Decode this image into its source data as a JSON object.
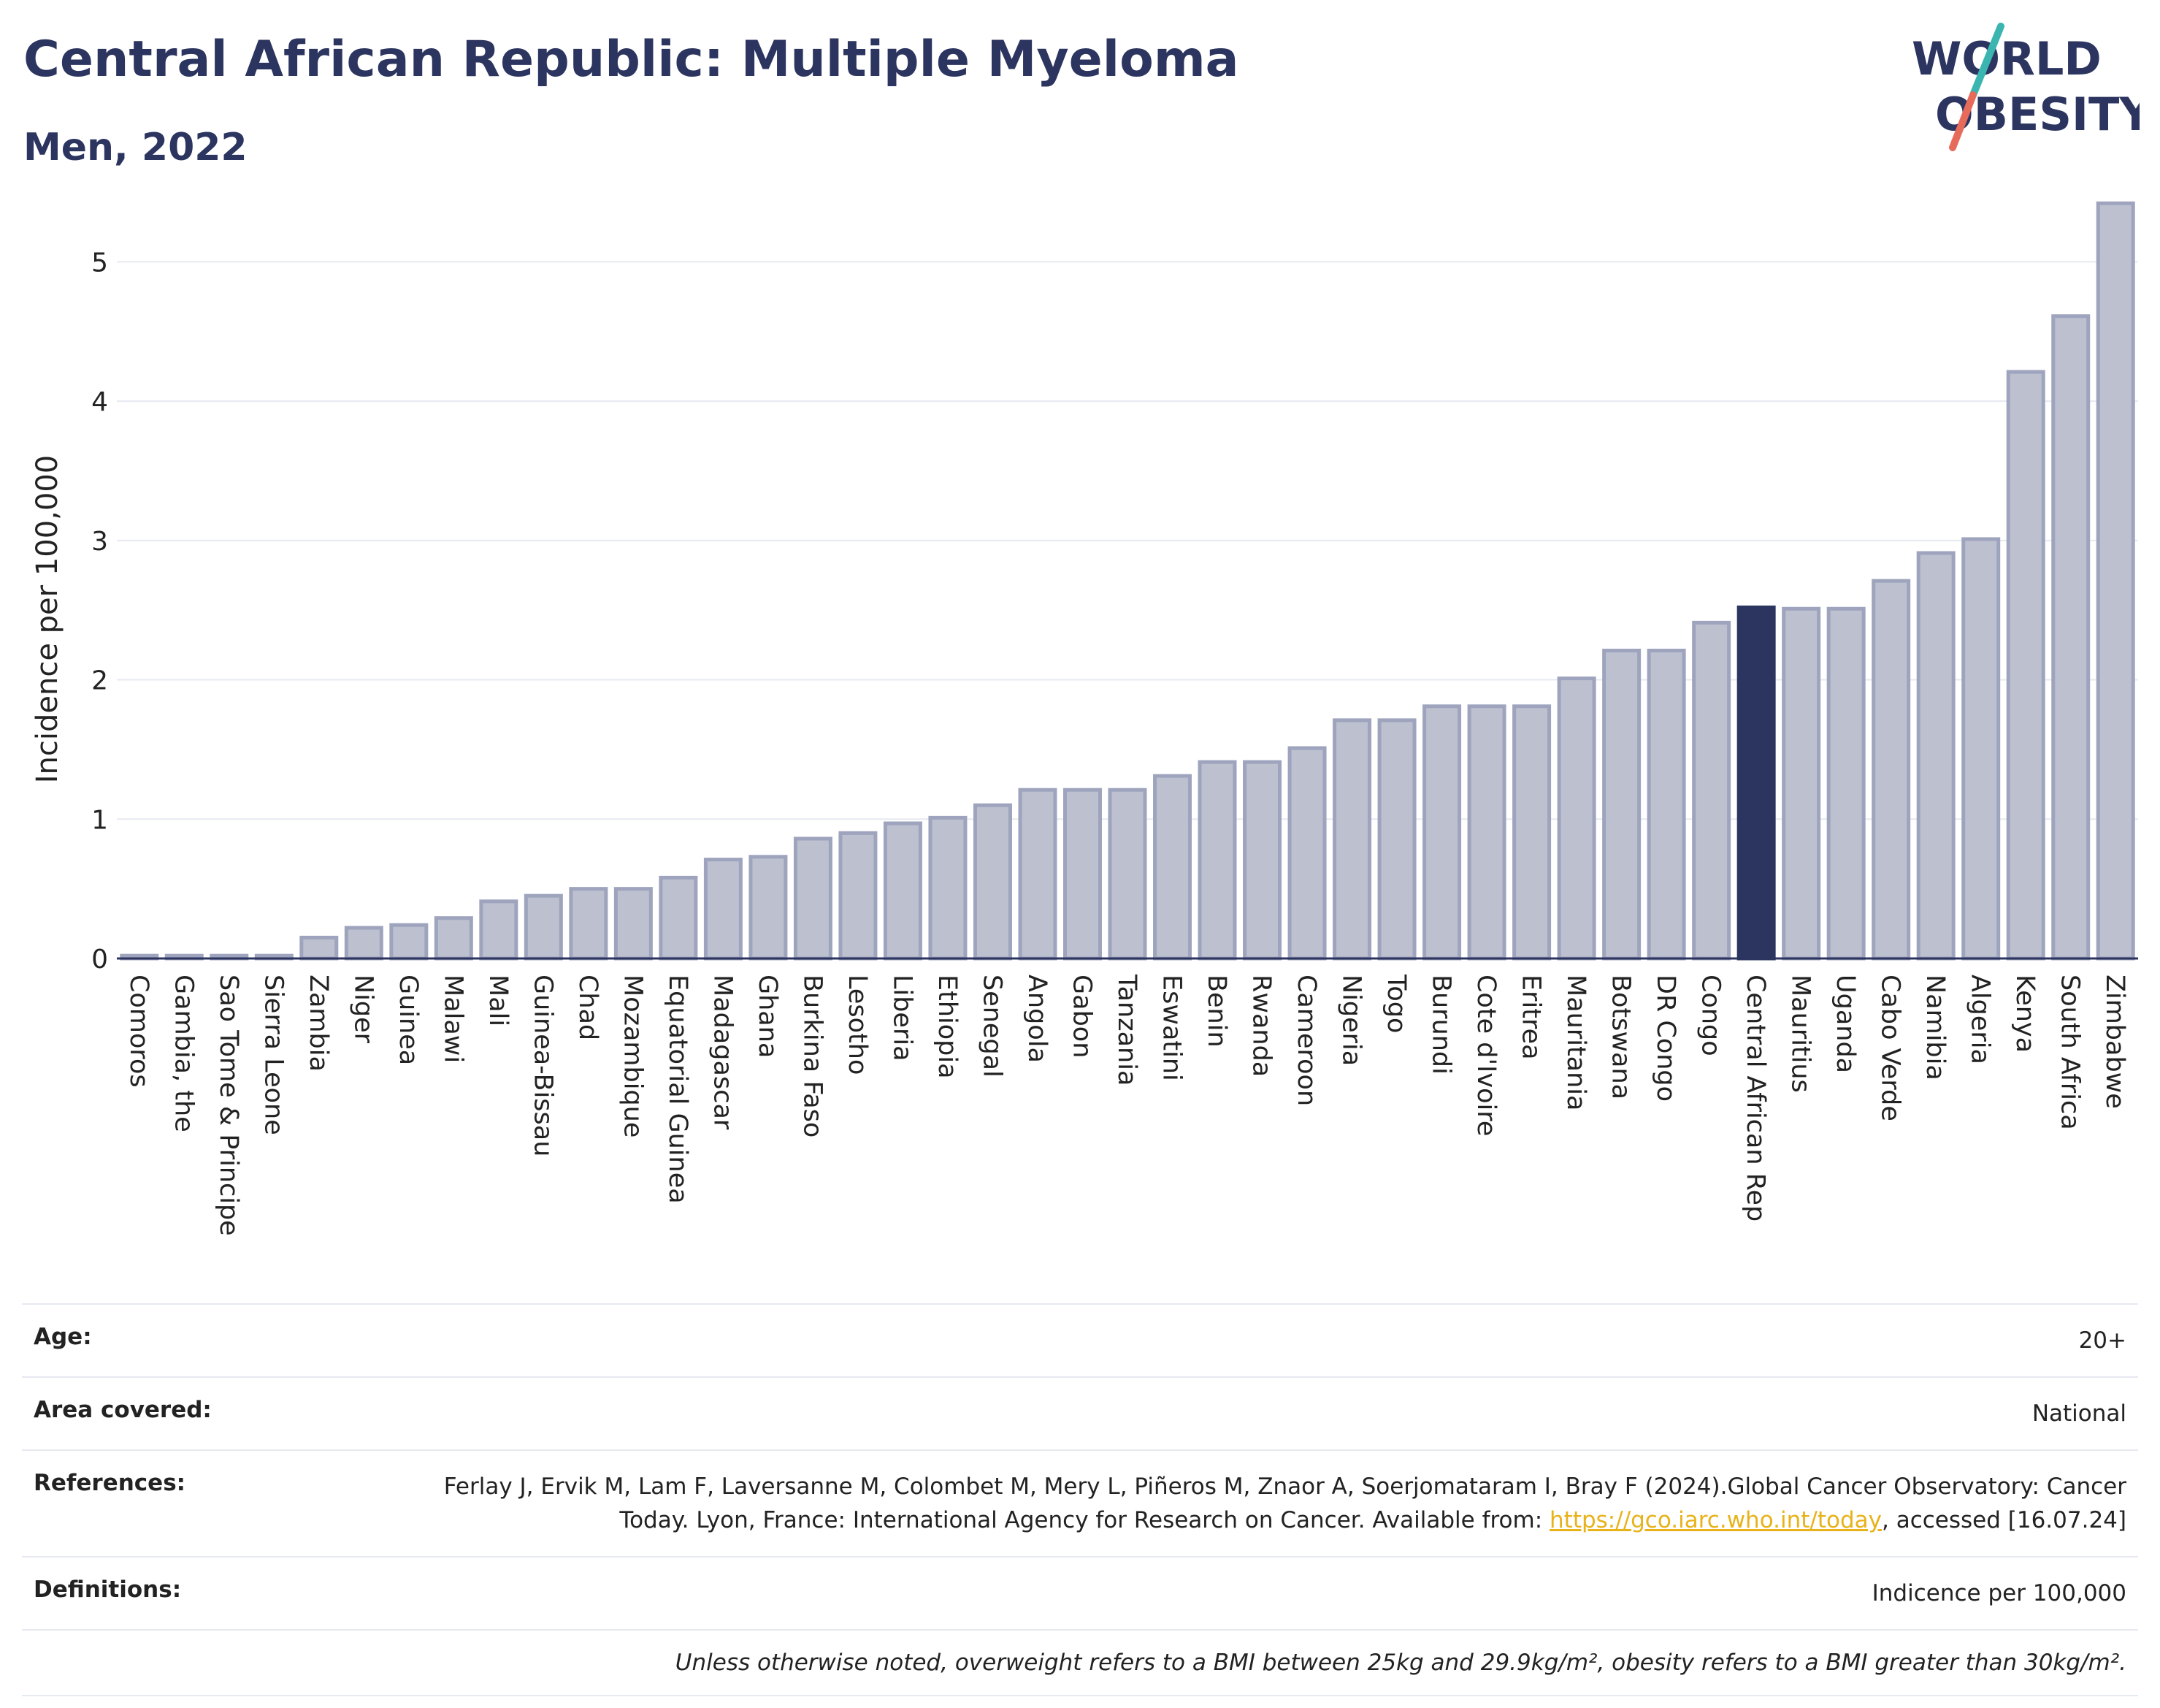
{
  "header": {
    "title": "Central African Republic: Multiple Myeloma",
    "subtitle": "Men, 2022",
    "logo_line1": "WORLD",
    "logo_line2": "OBESITY"
  },
  "colors": {
    "bar": "#bcc0cf",
    "bar_edge": "#9ea4bd",
    "highlight": "#2c3560",
    "grid": "#e6e9f0",
    "link": "#e8b21a",
    "logo_slash_top": "#3ab5b0",
    "logo_slash_bottom": "#e76b5b"
  },
  "chart_data": {
    "type": "bar",
    "ylabel": "Incidence per 100,000",
    "ylim": [
      0,
      5.5
    ],
    "yticks": [
      0,
      1,
      2,
      3,
      4,
      5
    ],
    "highlight": "Central African Rep",
    "grid": true,
    "categories": [
      "Comoros",
      "Gambia, the",
      "Sao Tome & Principe",
      "Sierra Leone",
      "Zambia",
      "Niger",
      "Guinea",
      "Malawi",
      "Mali",
      "Guinea-Bissau",
      "Chad",
      "Mozambique",
      "Equatorial Guinea",
      "Madagascar",
      "Ghana",
      "Burkina Faso",
      "Lesotho",
      "Liberia",
      "Ethiopia",
      "Senegal",
      "Angola",
      "Gabon",
      "Tanzania",
      "Eswatini",
      "Benin",
      "Rwanda",
      "Cameroon",
      "Nigeria",
      "Togo",
      "Burundi",
      "Cote d'Ivoire",
      "Eritrea",
      "Mauritania",
      "Botswana",
      "DR Congo",
      "Congo",
      "Central African Rep",
      "Mauritius",
      "Uganda",
      "Cabo Verde",
      "Namibia",
      "Algeria",
      "Kenya",
      "South Africa",
      "Zimbabwe"
    ],
    "values": [
      0.02,
      0.02,
      0.02,
      0.02,
      0.15,
      0.22,
      0.24,
      0.29,
      0.41,
      0.45,
      0.5,
      0.5,
      0.58,
      0.71,
      0.73,
      0.86,
      0.9,
      0.97,
      1.01,
      1.1,
      1.21,
      1.21,
      1.21,
      1.31,
      1.41,
      1.41,
      1.51,
      1.71,
      1.71,
      1.81,
      1.81,
      1.81,
      2.01,
      2.21,
      2.21,
      2.41,
      2.52,
      2.51,
      2.51,
      2.71,
      2.91,
      3.01,
      4.21,
      4.61,
      5.42
    ]
  },
  "info": {
    "age_label": "Age:",
    "age_value": "20+",
    "area_label": "Area covered:",
    "area_value": "National",
    "ref_label": "References:",
    "ref_text1": "Ferlay J, Ervik M, Lam F, Laversanne M, Colombet M, Mery L, Piñeros M, Znaor A, Soerjomataram I, Bray F (2024).Global Cancer Observatory: Cancer Today. Lyon, France: International Agency for Research on Cancer. Available from: ",
    "ref_link": "https://gco.iarc.who.int/today",
    "ref_text2": ", accessed [16.07.24]",
    "def_label": "Definitions:",
    "def_value": "Indicence per 100,000",
    "note": "Unless otherwise noted, overweight refers to a BMI between 25kg and 29.9kg/m², obesity refers to a BMI greater than 30kg/m²."
  }
}
